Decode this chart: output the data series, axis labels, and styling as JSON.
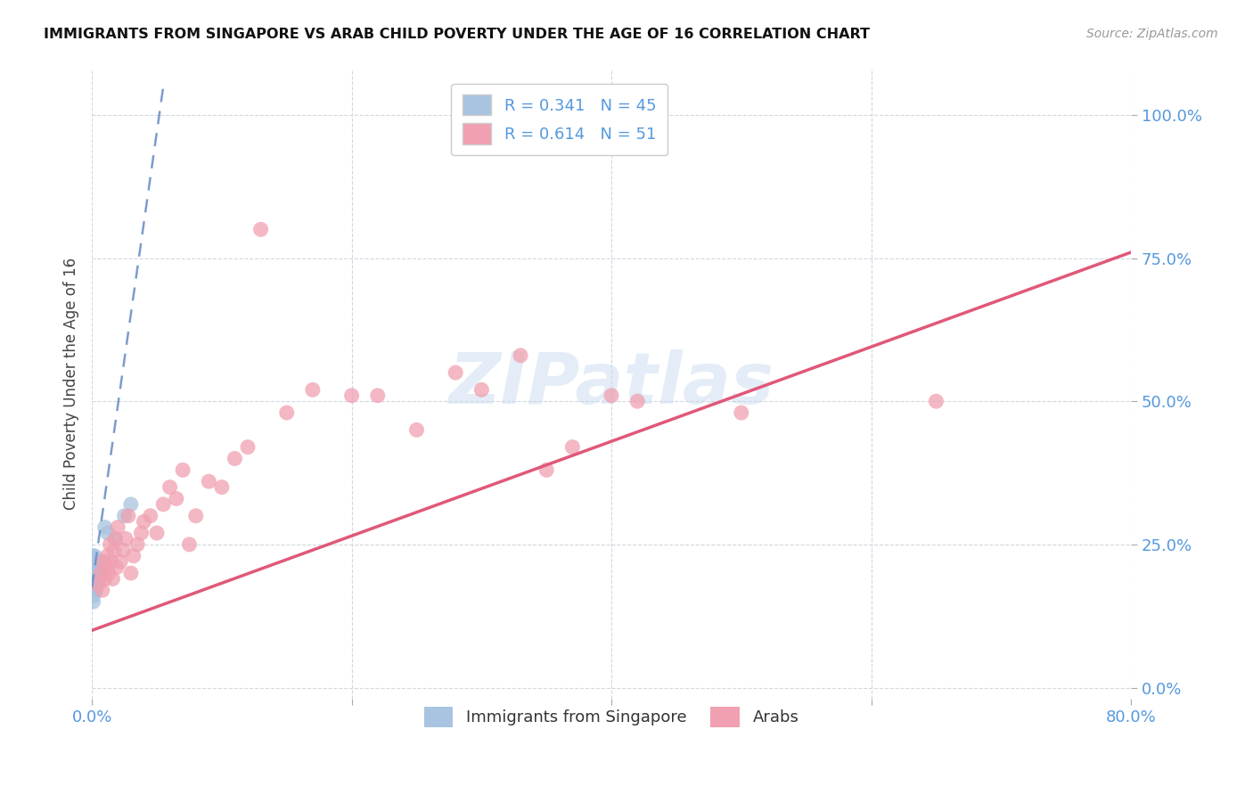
{
  "title": "IMMIGRANTS FROM SINGAPORE VS ARAB CHILD POVERTY UNDER THE AGE OF 16 CORRELATION CHART",
  "source": "Source: ZipAtlas.com",
  "ylabel": "Child Poverty Under the Age of 16",
  "xlim": [
    0.0,
    0.8
  ],
  "ylim": [
    -0.02,
    1.08
  ],
  "yticks": [
    0.0,
    0.25,
    0.5,
    0.75,
    1.0
  ],
  "ytick_labels": [
    "0.0%",
    "25.0%",
    "50.0%",
    "75.0%",
    "100.0%"
  ],
  "xticks": [
    0.0,
    0.2,
    0.4,
    0.6,
    0.8
  ],
  "xtick_labels": [
    "0.0%",
    "",
    "",
    "",
    "80.0%"
  ],
  "singapore_R": 0.341,
  "singapore_N": 45,
  "arab_R": 0.614,
  "arab_N": 51,
  "singapore_color": "#a8c4e0",
  "arab_color": "#f0a0b0",
  "singapore_line_color": "#7090c8",
  "arab_line_color": "#e05878",
  "tick_color": "#5599dd",
  "watermark": "ZIPatlas",
  "sg_line_x0": 0.0,
  "sg_line_y0": 0.175,
  "sg_line_x1": 0.055,
  "sg_line_y1": 1.05,
  "arab_line_x0": 0.0,
  "arab_line_y0": 0.1,
  "arab_line_x1": 0.8,
  "arab_line_y1": 0.76,
  "singapore_scatter_x": [
    0.001,
    0.001,
    0.001,
    0.001,
    0.001,
    0.001,
    0.001,
    0.001,
    0.001,
    0.001,
    0.002,
    0.002,
    0.002,
    0.002,
    0.002,
    0.002,
    0.002,
    0.002,
    0.002,
    0.002,
    0.003,
    0.003,
    0.003,
    0.003,
    0.003,
    0.003,
    0.003,
    0.004,
    0.004,
    0.004,
    0.004,
    0.005,
    0.005,
    0.005,
    0.006,
    0.006,
    0.007,
    0.007,
    0.008,
    0.009,
    0.01,
    0.012,
    0.018,
    0.025,
    0.03
  ],
  "singapore_scatter_y": [
    0.2,
    0.22,
    0.19,
    0.21,
    0.17,
    0.23,
    0.18,
    0.2,
    0.16,
    0.15,
    0.21,
    0.19,
    0.22,
    0.2,
    0.18,
    0.23,
    0.17,
    0.21,
    0.19,
    0.22,
    0.2,
    0.21,
    0.19,
    0.22,
    0.18,
    0.2,
    0.17,
    0.21,
    0.19,
    0.22,
    0.2,
    0.21,
    0.19,
    0.22,
    0.2,
    0.21,
    0.22,
    0.2,
    0.21,
    0.22,
    0.28,
    0.27,
    0.26,
    0.3,
    0.32
  ],
  "arab_scatter_x": [
    0.005,
    0.007,
    0.008,
    0.009,
    0.01,
    0.011,
    0.012,
    0.013,
    0.014,
    0.015,
    0.016,
    0.017,
    0.018,
    0.019,
    0.02,
    0.022,
    0.024,
    0.026,
    0.028,
    0.03,
    0.032,
    0.035,
    0.038,
    0.04,
    0.045,
    0.05,
    0.055,
    0.06,
    0.065,
    0.07,
    0.075,
    0.08,
    0.09,
    0.1,
    0.11,
    0.12,
    0.13,
    0.15,
    0.17,
    0.2,
    0.22,
    0.25,
    0.28,
    0.3,
    0.33,
    0.35,
    0.37,
    0.4,
    0.42,
    0.5,
    0.65
  ],
  "arab_scatter_y": [
    0.18,
    0.2,
    0.17,
    0.22,
    0.19,
    0.21,
    0.23,
    0.2,
    0.25,
    0.22,
    0.19,
    0.24,
    0.26,
    0.21,
    0.28,
    0.22,
    0.24,
    0.26,
    0.3,
    0.2,
    0.23,
    0.25,
    0.27,
    0.29,
    0.3,
    0.27,
    0.32,
    0.35,
    0.33,
    0.38,
    0.25,
    0.3,
    0.36,
    0.35,
    0.4,
    0.42,
    0.8,
    0.48,
    0.52,
    0.51,
    0.51,
    0.45,
    0.55,
    0.52,
    0.58,
    0.38,
    0.42,
    0.51,
    0.5,
    0.48,
    0.5
  ]
}
